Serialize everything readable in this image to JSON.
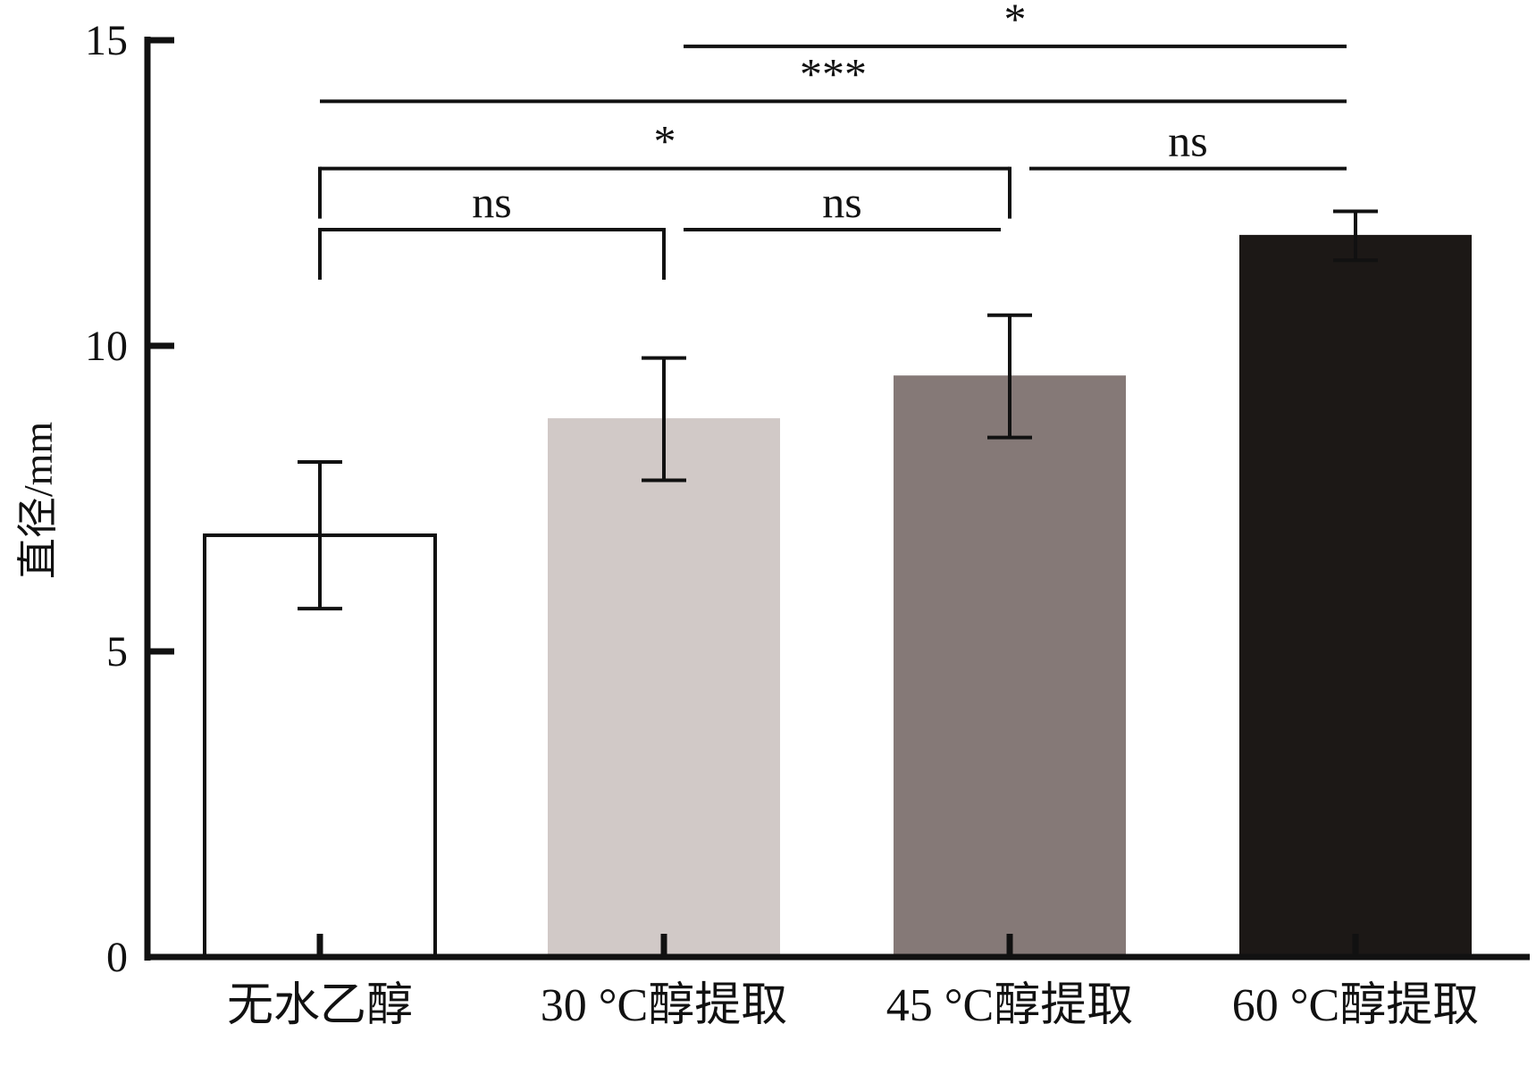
{
  "chart_data": {
    "type": "bar",
    "title": "",
    "xlabel": "",
    "ylabel": "直径/mm",
    "ylim": [
      0,
      15
    ],
    "yticks": [
      0,
      5,
      10,
      15
    ],
    "grid": false,
    "categories": [
      "无水乙醇",
      "30 °C醇提取",
      "45 °C醇提取",
      "60 °C醇提取"
    ],
    "values": [
      6.9,
      8.8,
      9.5,
      11.8
    ],
    "errors": [
      1.2,
      1.0,
      1.0,
      0.4
    ],
    "colors": [
      "#ffffff",
      "#d1c9c7",
      "#857977",
      "#1c1816"
    ],
    "outline": [
      "#111111",
      "#d1c9c7",
      "#857977",
      "#1c1816"
    ],
    "significance": [
      {
        "a": 0,
        "b": 1,
        "label": "ns",
        "level": 11.9,
        "ticks": true
      },
      {
        "a": 1,
        "b": 2,
        "label": "ns",
        "level": 11.9,
        "ticks": false
      },
      {
        "a": 0,
        "b": 2,
        "label": "*",
        "level": 12.9,
        "ticks": true
      },
      {
        "a": 2,
        "b": 3,
        "label": "ns",
        "level": 12.9,
        "ticks": false
      },
      {
        "a": 0,
        "b": 3,
        "label": "***",
        "level": 14.0,
        "ticks": false
      },
      {
        "a": 1,
        "b": 3,
        "label": "*",
        "level": 14.9,
        "ticks": false
      }
    ]
  }
}
